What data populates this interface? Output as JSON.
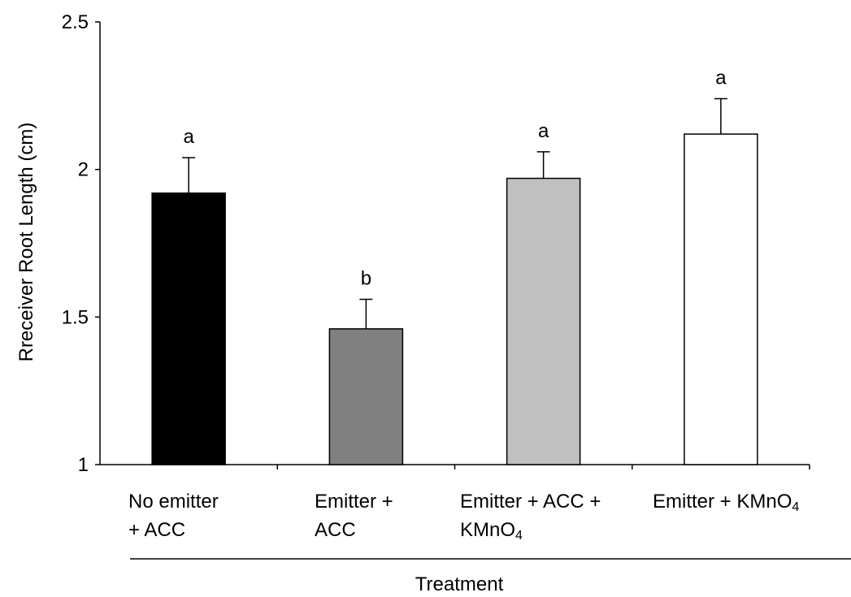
{
  "chart_data": {
    "type": "bar",
    "categories": [
      {
        "line1": "No emitter",
        "line2": "+ ACC",
        "line2_sub": ""
      },
      {
        "line1": "Emitter +",
        "line2": "ACC",
        "line2_sub": ""
      },
      {
        "line1": "Emitter + ACC +",
        "line2": "KMnO",
        "line2_sub": "4"
      },
      {
        "line1": "Emitter + KMnO",
        "line1_sub": "4",
        "line2": "",
        "line2_sub": ""
      }
    ],
    "values": [
      1.92,
      1.46,
      1.97,
      2.12
    ],
    "errors": [
      0.12,
      0.1,
      0.09,
      0.12
    ],
    "significance": [
      "a",
      "b",
      "a",
      "a"
    ],
    "bar_colors": [
      "#000000",
      "#808080",
      "#c0c0c0",
      "#ffffff"
    ],
    "ylim": [
      1,
      2.5
    ],
    "yticks": [
      "1",
      "1.5",
      "2",
      "2.5"
    ],
    "ytick_values": [
      1,
      1.5,
      2,
      2.5
    ],
    "ylabel": "Rreceiver Root Length (cm)",
    "xlabel": "Treatment",
    "grid": false,
    "legend": false
  }
}
